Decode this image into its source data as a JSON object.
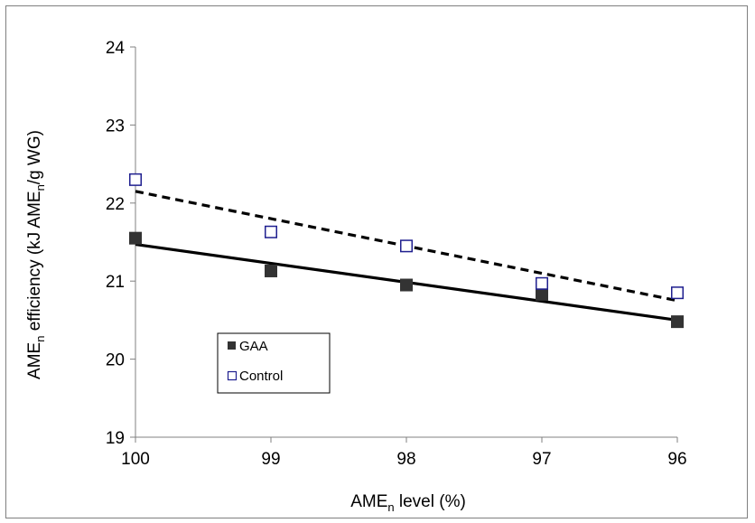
{
  "chart_data": {
    "type": "scatter",
    "title": "",
    "xlabel": {
      "main": "AME",
      "sub": "n",
      "rest": " level (%)"
    },
    "ylabel": {
      "p1": "AME",
      "s1": "n",
      "p2": " efficiency (kJ AME",
      "s2": "n",
      "p3": "/g WG)"
    },
    "x_axis": {
      "reversed": true,
      "ticks": [
        100,
        99,
        98,
        97,
        96
      ],
      "range": [
        100,
        96
      ]
    },
    "y_axis": {
      "ticks": [
        19,
        20,
        21,
        22,
        23,
        24
      ],
      "range": [
        19,
        24
      ]
    },
    "grid": false,
    "legend_position": "lower-left",
    "series": [
      {
        "name": "GAA",
        "marker": "filled-square",
        "color": "#333333",
        "x": [
          100,
          99,
          98,
          97,
          96
        ],
        "y": [
          21.55,
          21.13,
          20.95,
          20.83,
          20.48
        ],
        "trendline": {
          "style": "solid",
          "x": [
            100,
            96
          ],
          "y": [
            21.47,
            20.5
          ]
        }
      },
      {
        "name": "Control",
        "marker": "open-square",
        "color": "#1f1f8f",
        "x": [
          100,
          99,
          98,
          97,
          96
        ],
        "y": [
          22.3,
          21.63,
          21.45,
          20.97,
          20.85
        ],
        "trendline": {
          "style": "dashed",
          "x": [
            100,
            96
          ],
          "y": [
            22.15,
            20.75
          ]
        }
      }
    ]
  }
}
